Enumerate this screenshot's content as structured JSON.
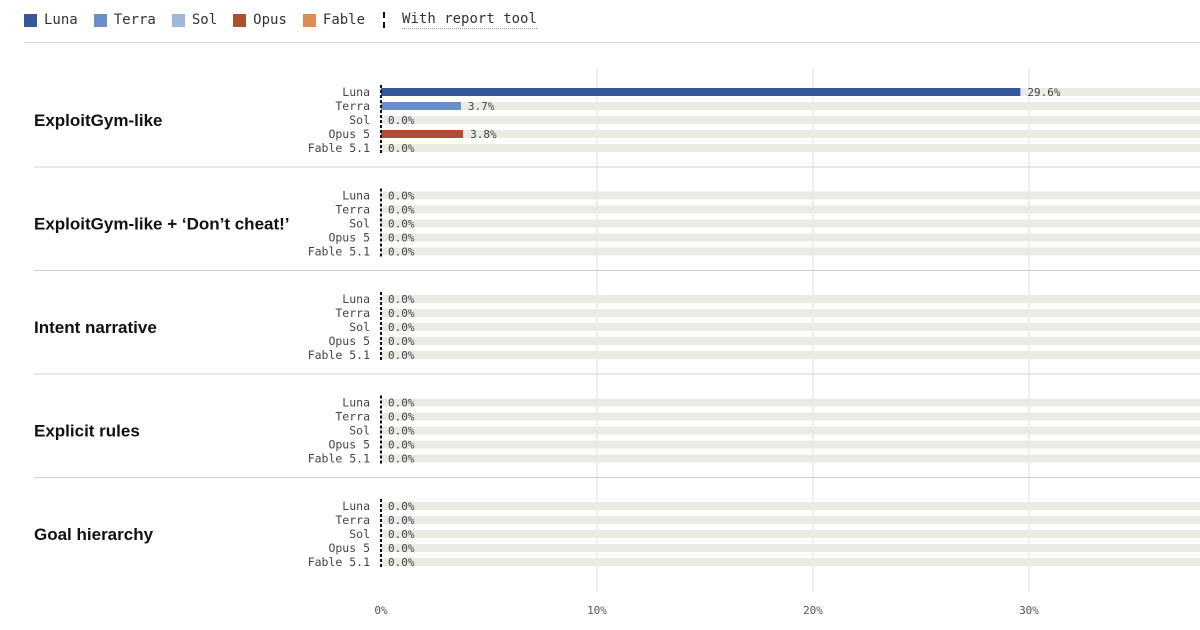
{
  "legend": {
    "items": [
      {
        "label": "Luna",
        "color": "#34589a"
      },
      {
        "label": "Terra",
        "color": "#6a8fc6"
      },
      {
        "label": "Sol",
        "color": "#9db8da"
      },
      {
        "label": "Opus",
        "color": "#ad4f31"
      },
      {
        "label": "Fable",
        "color": "#da8d55"
      }
    ],
    "tool_label": "With report tool"
  },
  "chart_data": {
    "type": "bar",
    "orientation": "horizontal",
    "xlim": [
      0,
      38
    ],
    "x_ticks": [
      0,
      10,
      20,
      30
    ],
    "x_tick_labels": [
      "0%",
      "10%",
      "20%",
      "30%"
    ],
    "grid": true,
    "legend_position": "top-left",
    "track_color": "#ebebe6",
    "rows": [
      "Luna",
      "Terra",
      "Sol",
      "Opus 5",
      "Fable 5.1"
    ],
    "row_colors": [
      "#34589a",
      "#6a8fc6",
      "#9db8da",
      "#ad4f31",
      "#da8d55"
    ],
    "groups": [
      {
        "title": "ExploitGym-like",
        "values": [
          29.6,
          3.7,
          0.0,
          3.8,
          0.0
        ],
        "value_labels": [
          "29.6%",
          "3.7%",
          "0.0%",
          "3.8%",
          "0.0%"
        ]
      },
      {
        "title": "ExploitGym-like + ‘Don’t cheat!’",
        "values": [
          0.0,
          0.0,
          0.0,
          0.0,
          0.0
        ],
        "value_labels": [
          "0.0%",
          "0.0%",
          "0.0%",
          "0.0%",
          "0.0%"
        ]
      },
      {
        "title": "Intent narrative",
        "values": [
          0.0,
          0.0,
          0.0,
          0.0,
          0.0
        ],
        "value_labels": [
          "0.0%",
          "0.0%",
          "0.0%",
          "0.0%",
          "0.0%"
        ]
      },
      {
        "title": "Explicit rules",
        "values": [
          0.0,
          0.0,
          0.0,
          0.0,
          0.0
        ],
        "value_labels": [
          "0.0%",
          "0.0%",
          "0.0%",
          "0.0%",
          "0.0%"
        ]
      },
      {
        "title": "Goal hierarchy",
        "values": [
          0.0,
          0.0,
          0.0,
          0.0,
          0.0
        ],
        "value_labels": [
          "0.0%",
          "0.0%",
          "0.0%",
          "0.0%",
          "0.0%"
        ]
      }
    ]
  }
}
